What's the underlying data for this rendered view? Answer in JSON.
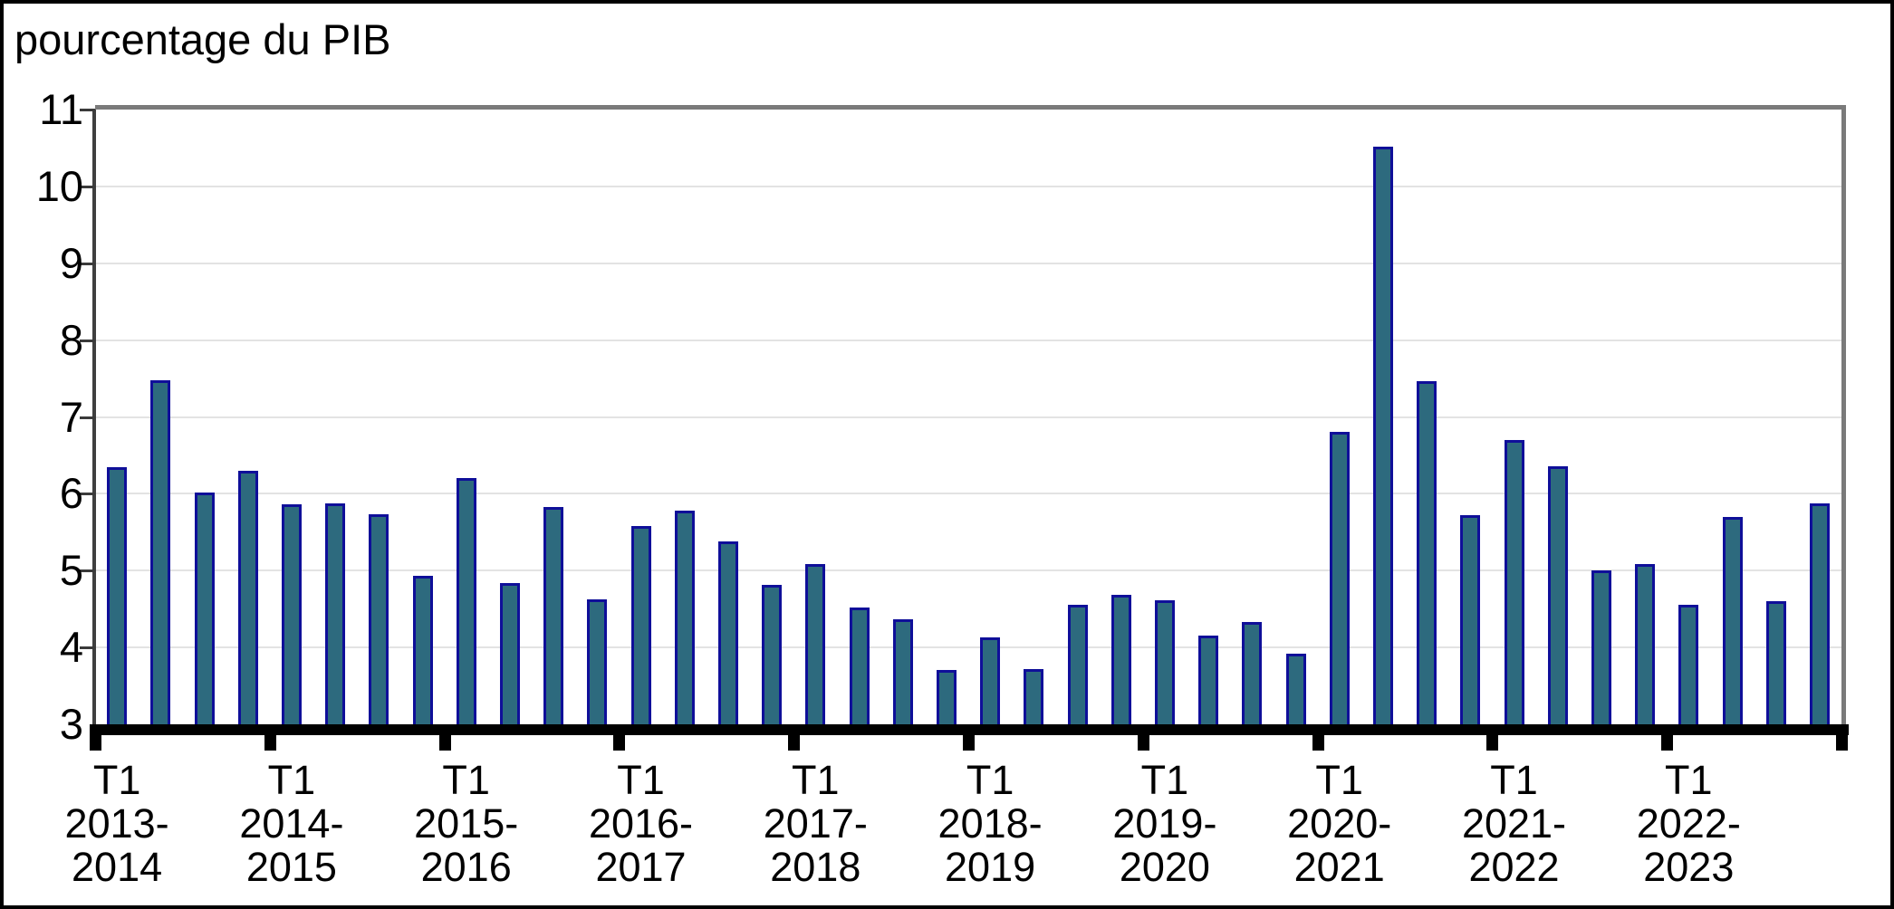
{
  "title": "pourcentage du PIB",
  "chart_data": {
    "type": "bar",
    "title": "pourcentage du PIB",
    "xlabel": "",
    "ylabel": "pourcentage du PIB",
    "ylim": [
      3,
      11
    ],
    "ytick_labels": [
      "3",
      "4",
      "5",
      "6",
      "7",
      "8",
      "9",
      "10",
      "11"
    ],
    "grid": "horizontal",
    "legend_position": "none",
    "quarters_per_group": 4,
    "groups": [
      {
        "year": "2013-2014",
        "tick_label_lines": [
          "T1",
          "2013-",
          "2014"
        ],
        "values": [
          6.35,
          7.48,
          6.02,
          6.3
        ]
      },
      {
        "year": "2014-2015",
        "tick_label_lines": [
          "T1",
          "2014-",
          "2015"
        ],
        "values": [
          5.86,
          5.88,
          5.73,
          4.93
        ]
      },
      {
        "year": "2015-2016",
        "tick_label_lines": [
          "T1",
          "2015-",
          "2016"
        ],
        "values": [
          6.2,
          4.84,
          5.83,
          4.63
        ]
      },
      {
        "year": "2016-2017",
        "tick_label_lines": [
          "T1",
          "2016-",
          "2017"
        ],
        "values": [
          5.58,
          5.78,
          5.38,
          4.82
        ]
      },
      {
        "year": "2017-2018",
        "tick_label_lines": [
          "T1",
          "2017-",
          "2018"
        ],
        "values": [
          5.08,
          4.52,
          4.37,
          3.71
        ]
      },
      {
        "year": "2018-2019",
        "tick_label_lines": [
          "T1",
          "2018-",
          "2019"
        ],
        "values": [
          4.13,
          3.72,
          4.55,
          4.68
        ]
      },
      {
        "year": "2019-2020",
        "tick_label_lines": [
          "T1",
          "2019-",
          "2020"
        ],
        "values": [
          4.62,
          4.15,
          4.33,
          3.92
        ]
      },
      {
        "year": "2020-2021",
        "tick_label_lines": [
          "T1",
          "2020-",
          "2021"
        ],
        "values": [
          6.8,
          10.52,
          7.46,
          5.72
        ]
      },
      {
        "year": "2021-2022",
        "tick_label_lines": [
          "T1",
          "2021-",
          "2022"
        ],
        "values": [
          6.7,
          6.36,
          5.0,
          5.08
        ]
      },
      {
        "year": "2022-2023",
        "tick_label_lines": [
          "T1",
          "2022-",
          "2023"
        ],
        "values": [
          4.55,
          5.7,
          4.6,
          5.88
        ]
      }
    ],
    "colors": {
      "bar_fill": "#2D6A7E",
      "bar_border": "#0F0F99",
      "gridline": "#E3E3E3",
      "plot_frame": "#7A7A7A",
      "axis_line": "#3F3F3F",
      "baseline": "#000000"
    }
  }
}
